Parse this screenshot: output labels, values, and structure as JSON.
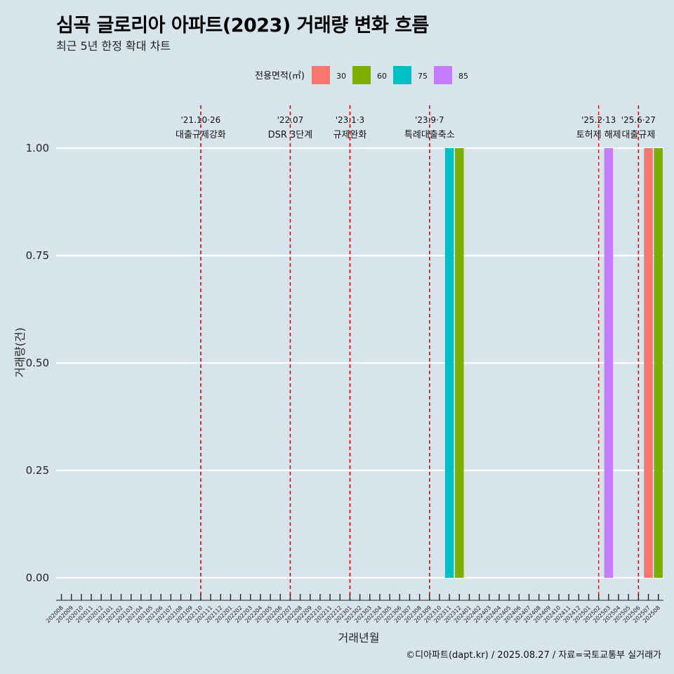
{
  "title": "심곡 글로리아 아파트(2023) 거래량 변화 흐름",
  "subtitle": "최근 5년 한정 확대 차트",
  "caption": "©디아파트(dapt.kr) / 2025.08.27 / 자료=국토교통부 실거래가",
  "colors": {
    "background": "#d8e4ec",
    "grid": "#ffffff",
    "event_line": "#ee0000",
    "30": "#f8766d",
    "60": "#7cae00",
    "75": "#00bfc4",
    "85": "#c77cff"
  },
  "chart_data": {
    "type": "bar",
    "title": "심곡 글로리아 아파트(2023) 거래량 변화 흐름",
    "xlabel": "거래년월",
    "ylabel": "거래량(건)",
    "ylim": [
      0,
      1
    ],
    "yticks": [
      "0.00",
      "0.25",
      "0.50",
      "0.75",
      "1.00"
    ],
    "legend_title": "전용면적(㎡)",
    "legend_position": "top",
    "categories": [
      "202008",
      "202009",
      "202010",
      "202011",
      "202012",
      "202101",
      "202102",
      "202103",
      "202104",
      "202105",
      "202106",
      "202107",
      "202108",
      "202109",
      "202110",
      "202111",
      "202112",
      "202201",
      "202202",
      "202203",
      "202204",
      "202205",
      "202206",
      "202207",
      "202208",
      "202209",
      "202210",
      "202211",
      "202212",
      "202301",
      "202302",
      "202303",
      "202304",
      "202305",
      "202306",
      "202307",
      "202308",
      "202309",
      "202310",
      "202311",
      "202312",
      "202401",
      "202402",
      "202403",
      "202404",
      "202405",
      "202406",
      "202407",
      "202408",
      "202409",
      "202410",
      "202411",
      "202412",
      "202501",
      "202502",
      "202503",
      "202504",
      "202505",
      "202506",
      "202507",
      "202508"
    ],
    "series": [
      {
        "name": "30",
        "points": [
          {
            "x": "202507",
            "y": 1
          }
        ]
      },
      {
        "name": "60",
        "points": [
          {
            "x": "202312",
            "y": 1
          },
          {
            "x": "202508",
            "y": 1
          }
        ]
      },
      {
        "name": "75",
        "points": [
          {
            "x": "202311",
            "y": 1
          }
        ]
      },
      {
        "name": "85",
        "points": [
          {
            "x": "202503",
            "y": 1
          }
        ]
      }
    ],
    "events": [
      {
        "x": "202110",
        "date": "'21.10·26",
        "label": "대출규제강화"
      },
      {
        "x": "202207",
        "date": "'22.07",
        "label": "DSR 3단계"
      },
      {
        "x": "202301",
        "date": "'23.1·3",
        "label": "규제완화"
      },
      {
        "x": "202309",
        "date": "'23.9·7",
        "label": "특례대출축소"
      },
      {
        "x": "202502",
        "date": "'25.2·13",
        "label": "토허제 해제"
      },
      {
        "x": "202506",
        "date": "'25.6·27",
        "label": "대출규제"
      }
    ]
  }
}
